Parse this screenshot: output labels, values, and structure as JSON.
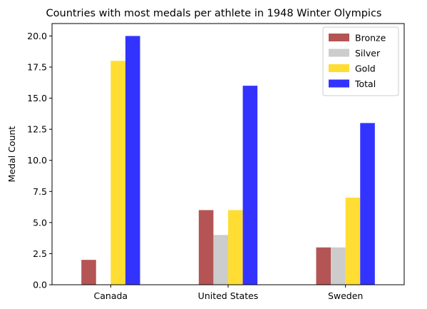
{
  "chart_data": {
    "type": "bar",
    "title": "Countries with most medals per athlete in 1948 Winter Olympics",
    "xlabel": "",
    "ylabel": "Medal Count",
    "categories": [
      "Canada",
      "United States",
      "Sweden"
    ],
    "series": [
      {
        "name": "Bronze",
        "values": [
          2,
          6,
          3
        ],
        "color": "#b55454"
      },
      {
        "name": "Silver",
        "values": [
          0,
          4,
          3
        ],
        "color": "#cccccc"
      },
      {
        "name": "Gold",
        "values": [
          18,
          6,
          7
        ],
        "color": "#ffdd33"
      },
      {
        "name": "Total",
        "values": [
          20,
          16,
          13
        ],
        "color": "#3333ff"
      }
    ],
    "ylim": [
      0,
      21
    ],
    "yticks": [
      "0.0",
      "2.5",
      "5.0",
      "7.5",
      "10.0",
      "12.5",
      "15.0",
      "17.5",
      "20.0"
    ],
    "grid": false,
    "legend_position": "top-right"
  }
}
